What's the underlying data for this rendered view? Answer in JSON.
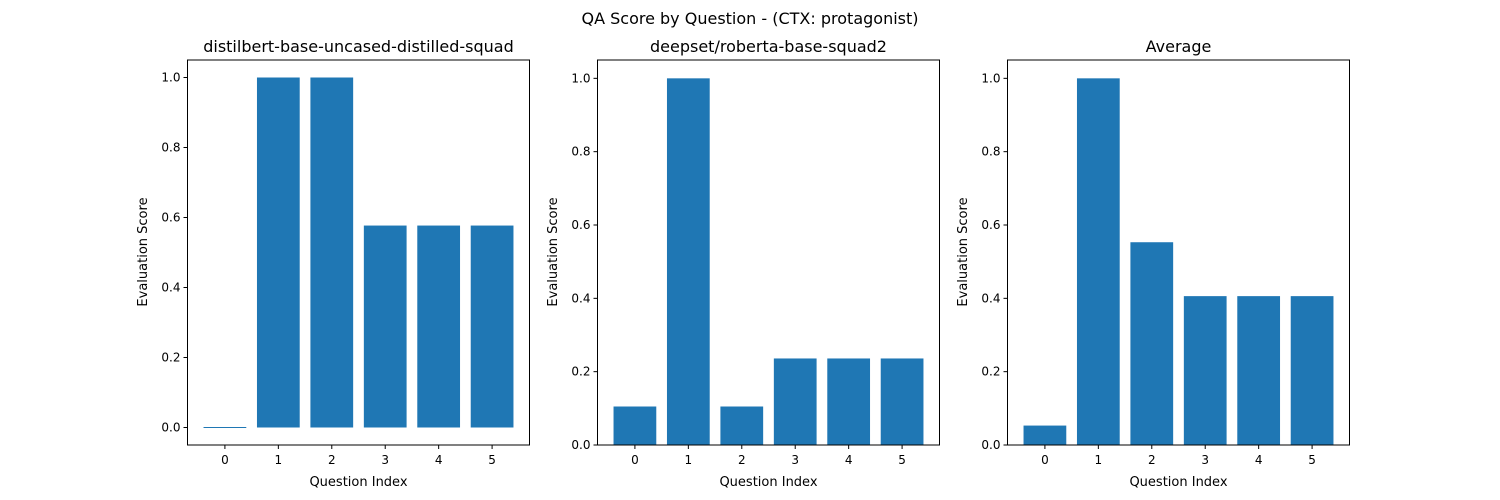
{
  "figure": {
    "suptitle": "QA Score by Question - (CTX: protagonist)"
  },
  "chart_data": [
    {
      "type": "bar",
      "title": "distilbert-base-uncased-distilled-squad",
      "xlabel": "Question Index",
      "ylabel": "Evaluation Score",
      "categories": [
        "0",
        "1",
        "2",
        "3",
        "4",
        "5"
      ],
      "values": [
        0.0,
        1.0,
        1.0,
        0.577,
        0.577,
        0.577
      ],
      "xlim": [
        -0.7,
        5.7
      ],
      "ylim": [
        -0.05,
        1.05
      ],
      "yticks": [
        0.0,
        0.2,
        0.4,
        0.6,
        0.8,
        1.0
      ],
      "ytick_labels": [
        "0.0",
        "0.2",
        "0.4",
        "0.6",
        "0.8",
        "1.0"
      ],
      "color": "#1f77b4",
      "grid": false
    },
    {
      "type": "bar",
      "title": "deepset/roberta-base-squad2",
      "xlabel": "Question Index",
      "ylabel": "Evaluation Score",
      "categories": [
        "0",
        "1",
        "2",
        "3",
        "4",
        "5"
      ],
      "values": [
        0.105,
        1.0,
        0.105,
        0.236,
        0.236,
        0.236
      ],
      "xlim": [
        -0.7,
        5.7
      ],
      "ylim": [
        0.0,
        1.05
      ],
      "yticks": [
        0.0,
        0.2,
        0.4,
        0.6,
        0.8,
        1.0
      ],
      "ytick_labels": [
        "0.0",
        "0.2",
        "0.4",
        "0.6",
        "0.8",
        "1.0"
      ],
      "color": "#1f77b4",
      "grid": false
    },
    {
      "type": "bar",
      "title": "Average",
      "xlabel": "Question Index",
      "ylabel": "Evaluation Score",
      "categories": [
        "0",
        "1",
        "2",
        "3",
        "4",
        "5"
      ],
      "values": [
        0.053,
        1.0,
        0.553,
        0.406,
        0.406,
        0.406
      ],
      "xlim": [
        -0.7,
        5.7
      ],
      "ylim": [
        0.0,
        1.05
      ],
      "yticks": [
        0.0,
        0.2,
        0.4,
        0.6,
        0.8,
        1.0
      ],
      "ytick_labels": [
        "0.0",
        "0.2",
        "0.4",
        "0.6",
        "0.8",
        "1.0"
      ],
      "color": "#1f77b4",
      "grid": false
    }
  ]
}
